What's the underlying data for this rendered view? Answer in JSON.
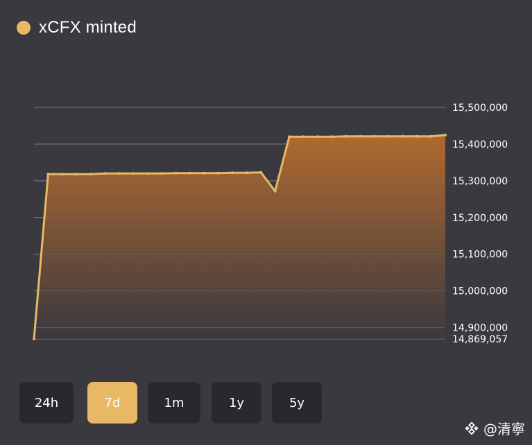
{
  "chart_data": {
    "type": "area",
    "series": [
      {
        "name": "xCFX minted",
        "color": "#e8b865",
        "values": [
          14869057,
          15318000,
          15318000,
          15318000,
          15318000,
          15320000,
          15320000,
          15320000,
          15320000,
          15320000,
          15321000,
          15321000,
          15321000,
          15321000,
          15322000,
          15322000,
          15323000,
          15272000,
          15420000,
          15420000,
          15420000,
          15420000,
          15421000,
          15421000,
          15421000,
          15421000,
          15421000,
          15421000,
          15421000,
          15425000
        ]
      }
    ],
    "y_ticks": [
      {
        "value": 15500000,
        "label": "15,500,000"
      },
      {
        "value": 15400000,
        "label": "15,400,000"
      },
      {
        "value": 15300000,
        "label": "15,300,000"
      },
      {
        "value": 15200000,
        "label": "15,200,000"
      },
      {
        "value": 15100000,
        "label": "15,100,000"
      },
      {
        "value": 15000000,
        "label": "15,000,000"
      },
      {
        "value": 14900000,
        "label": "14,900,000"
      },
      {
        "value": 14869057,
        "label": "14,869,057"
      }
    ],
    "ylim": [
      14869057,
      15500000
    ],
    "grid": true,
    "legend_position": "top-left"
  },
  "legend": {
    "label": "xCFX minted",
    "color": "#e8b865"
  },
  "range_selector": {
    "active": "7d",
    "options": [
      {
        "label": "24h"
      },
      {
        "label": "7d"
      },
      {
        "label": "1m"
      },
      {
        "label": "1y"
      },
      {
        "label": "5y"
      }
    ]
  },
  "watermark": {
    "text": "@清寧",
    "icon": "binance-logo-icon"
  },
  "colors": {
    "background": "#3a3940",
    "accent": "#e8b865",
    "gridline": "#7d7b80",
    "button_bg": "#29282e"
  }
}
